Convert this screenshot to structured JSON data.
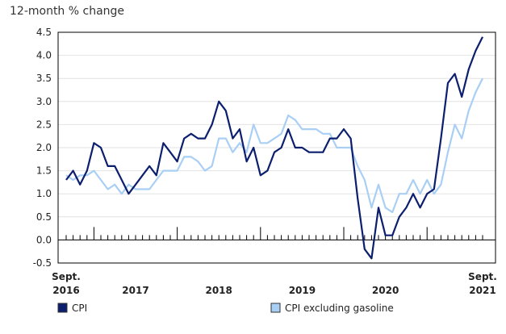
{
  "chart_data": {
    "type": "line",
    "ylabel": "12-month % change",
    "ylim": [
      -0.5,
      4.5
    ],
    "yticks": [
      "4.5",
      "4.0",
      "3.5",
      "3.0",
      "2.5",
      "2.0",
      "1.5",
      "1.0",
      "0.5",
      "0.0",
      "-0.5"
    ],
    "x_start_label": [
      "Sept.",
      "2016"
    ],
    "x_end_label": [
      "Sept.",
      "2021"
    ],
    "x_year_labels": [
      "2017",
      "2018",
      "2019",
      "2020"
    ],
    "months": [
      "2016-09",
      "2016-10",
      "2016-11",
      "2016-12",
      "2017-01",
      "2017-02",
      "2017-03",
      "2017-04",
      "2017-05",
      "2017-06",
      "2017-07",
      "2017-08",
      "2017-09",
      "2017-10",
      "2017-11",
      "2017-12",
      "2018-01",
      "2018-02",
      "2018-03",
      "2018-04",
      "2018-05",
      "2018-06",
      "2018-07",
      "2018-08",
      "2018-09",
      "2018-10",
      "2018-11",
      "2018-12",
      "2019-01",
      "2019-02",
      "2019-03",
      "2019-04",
      "2019-05",
      "2019-06",
      "2019-07",
      "2019-08",
      "2019-09",
      "2019-10",
      "2019-11",
      "2019-12",
      "2020-01",
      "2020-02",
      "2020-03",
      "2020-04",
      "2020-05",
      "2020-06",
      "2020-07",
      "2020-08",
      "2020-09",
      "2020-10",
      "2020-11",
      "2020-12",
      "2021-01",
      "2021-02",
      "2021-03",
      "2021-04",
      "2021-05",
      "2021-06",
      "2021-07",
      "2021-08",
      "2021-09"
    ],
    "series": [
      {
        "name": "CPI",
        "color": "#0b1f6e",
        "values": [
          1.3,
          1.5,
          1.2,
          1.5,
          2.1,
          2.0,
          1.6,
          1.6,
          1.3,
          1.0,
          1.2,
          1.4,
          1.6,
          1.4,
          2.1,
          1.9,
          1.7,
          2.2,
          2.3,
          2.2,
          2.2,
          2.5,
          3.0,
          2.8,
          2.2,
          2.4,
          1.7,
          2.0,
          1.4,
          1.5,
          1.9,
          2.0,
          2.4,
          2.0,
          2.0,
          1.9,
          1.9,
          1.9,
          2.2,
          2.2,
          2.4,
          2.2,
          0.9,
          -0.2,
          -0.4,
          0.7,
          0.1,
          0.1,
          0.5,
          0.7,
          1.0,
          0.7,
          1.0,
          1.1,
          2.2,
          3.4,
          3.6,
          3.1,
          3.7,
          4.1,
          4.4
        ]
      },
      {
        "name": "CPI excluding gasoline",
        "color": "#a9cff5",
        "values": [
          1.4,
          1.3,
          1.4,
          1.4,
          1.5,
          1.3,
          1.1,
          1.2,
          1.0,
          1.2,
          1.1,
          1.1,
          1.1,
          1.3,
          1.5,
          1.5,
          1.5,
          1.8,
          1.8,
          1.7,
          1.5,
          1.6,
          2.2,
          2.2,
          1.9,
          2.1,
          1.9,
          2.5,
          2.1,
          2.1,
          2.2,
          2.3,
          2.7,
          2.6,
          2.4,
          2.4,
          2.4,
          2.3,
          2.3,
          2.0,
          2.0,
          2.0,
          1.6,
          1.3,
          0.7,
          1.2,
          0.7,
          0.6,
          1.0,
          1.0,
          1.3,
          1.0,
          1.3,
          1.0,
          1.2,
          1.9,
          2.5,
          2.2,
          2.8,
          3.2,
          3.5
        ]
      }
    ]
  }
}
